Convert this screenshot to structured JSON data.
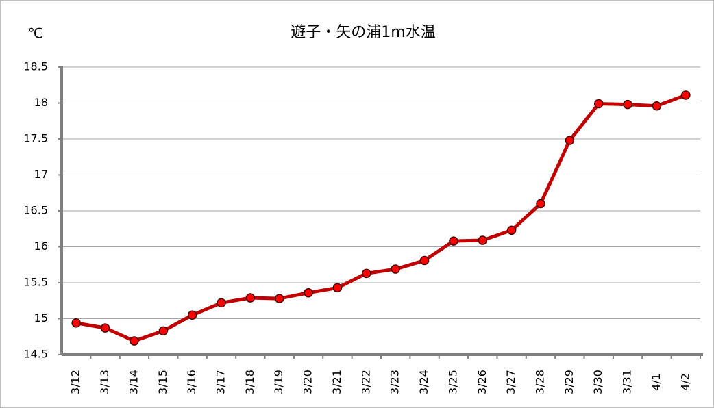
{
  "chart_data": {
    "type": "line",
    "title": "遊子・矢の浦1m水温",
    "y_label": "℃",
    "categories": [
      "3/12",
      "3/13",
      "3/14",
      "3/15",
      "3/16",
      "3/17",
      "3/18",
      "3/19",
      "3/20",
      "3/21",
      "3/22",
      "3/23",
      "3/24",
      "3/25",
      "3/26",
      "3/27",
      "3/28",
      "3/29",
      "3/30",
      "3/31",
      "4/1",
      "4/2"
    ],
    "series": [
      {
        "name": "1m水温",
        "color": "#c00000",
        "marker_color": "#ff0000",
        "values": [
          14.94,
          14.87,
          14.69,
          14.83,
          15.05,
          15.22,
          15.29,
          15.28,
          15.36,
          15.43,
          15.63,
          15.69,
          15.81,
          16.08,
          16.09,
          16.23,
          16.6,
          17.48,
          17.99,
          17.98,
          17.96,
          18.11
        ]
      }
    ],
    "ylim": [
      14.5,
      18.5
    ],
    "yticks": [
      14.5,
      15,
      15.5,
      16,
      16.5,
      17,
      17.5,
      18,
      18.5
    ],
    "grid": true
  }
}
